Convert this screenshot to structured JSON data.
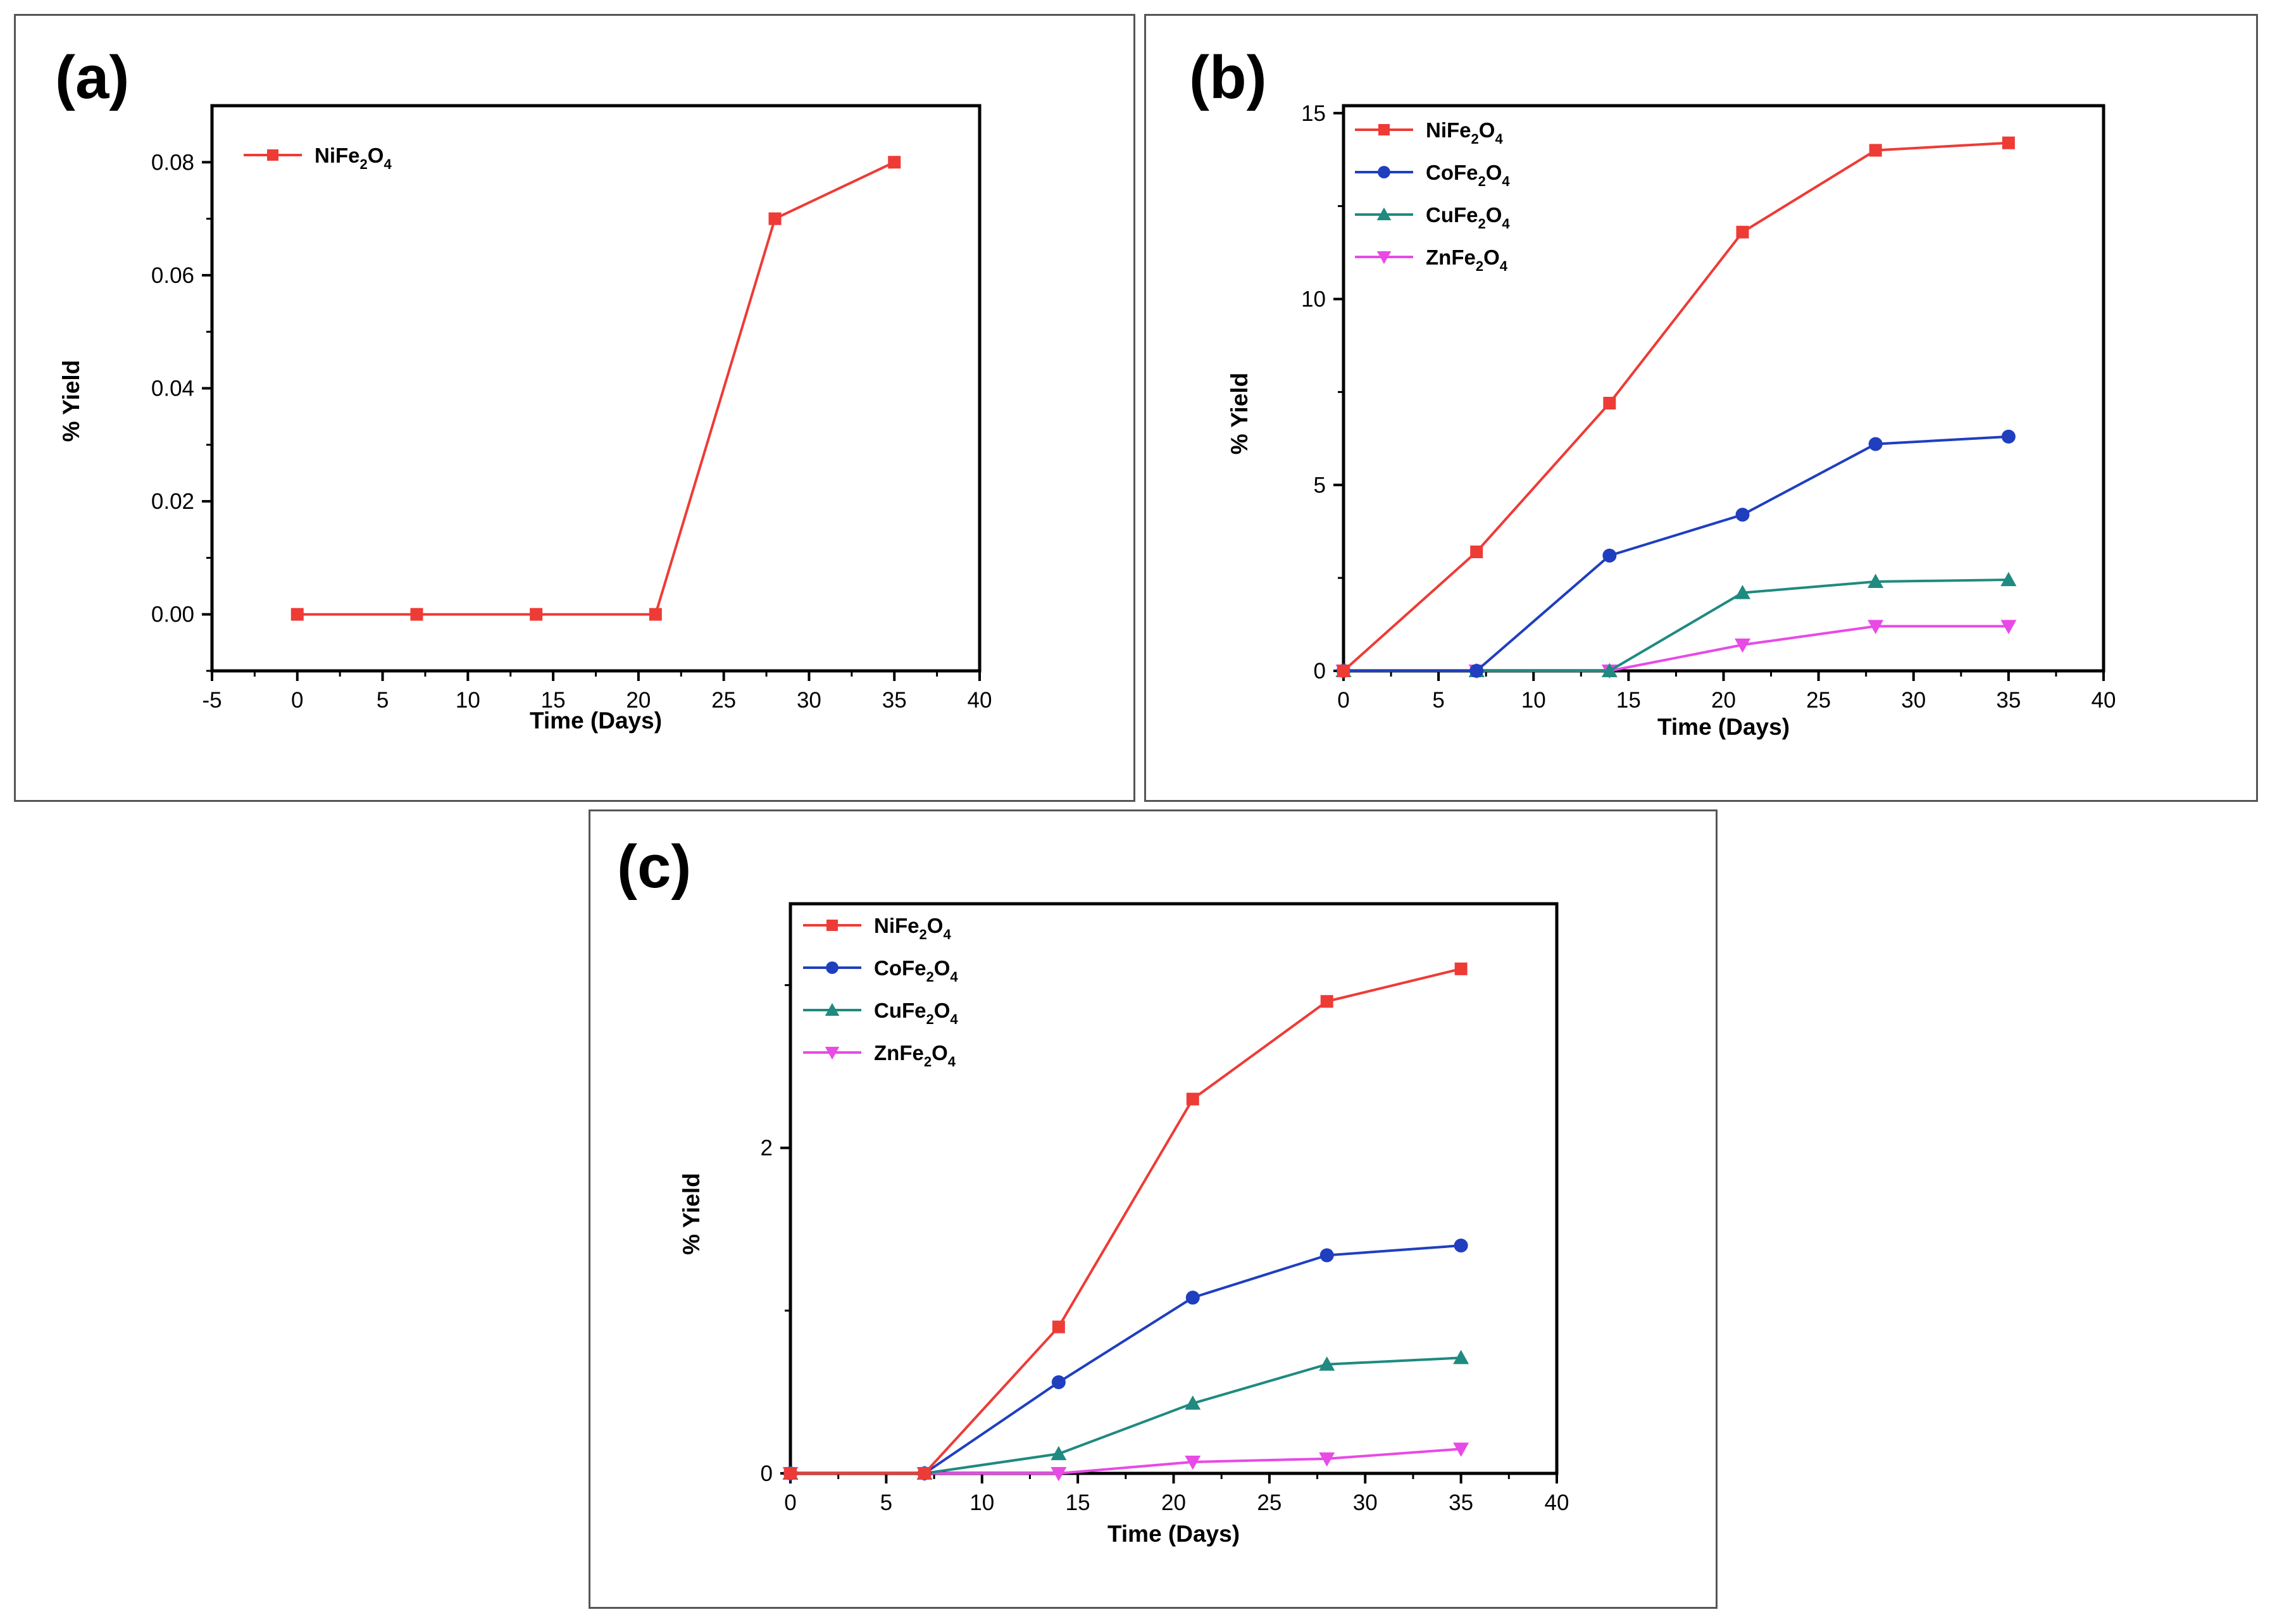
{
  "chart_data": [
    {
      "panel": "(a)",
      "type": "line",
      "xlabel": "Time (Days)",
      "ylabel": "% Yield",
      "xlim": [
        -5,
        40
      ],
      "ylim": [
        -0.01,
        0.09
      ],
      "xticks": [
        -5,
        0,
        5,
        10,
        15,
        20,
        25,
        30,
        35,
        40
      ],
      "yticks": [
        0.0,
        0.02,
        0.04,
        0.06,
        0.08
      ],
      "ydecimals": 2,
      "x": [
        0,
        7,
        14,
        21,
        28,
        35
      ],
      "series": [
        {
          "name": "NiFe",
          "sub1": "2",
          "mid": "O",
          "sub2": "4",
          "color": "#ee3b36",
          "marker": "square",
          "values": [
            0.0,
            0.0,
            0.0,
            0.0,
            0.07,
            0.08
          ]
        }
      ]
    },
    {
      "panel": "(b)",
      "type": "line",
      "xlabel": "Time (Days)",
      "ylabel": "% Yield",
      "xlim": [
        0,
        40
      ],
      "ylim": [
        0,
        15.2
      ],
      "xticks": [
        0,
        5,
        10,
        15,
        20,
        25,
        30,
        35,
        40
      ],
      "yticks": [
        0,
        5,
        10,
        15
      ],
      "ydecimals": 0,
      "x": [
        0,
        7,
        14,
        21,
        28,
        35
      ],
      "series": [
        {
          "name": "NiFe",
          "sub1": "2",
          "mid": "O",
          "sub2": "4",
          "color": "#ee3b36",
          "marker": "square",
          "values": [
            0,
            3.2,
            7.2,
            11.8,
            14.0,
            14.2
          ]
        },
        {
          "name": "CoFe",
          "sub1": "2",
          "mid": "O",
          "sub2": "4",
          "color": "#1f3fbf",
          "marker": "circle",
          "values": [
            0,
            0,
            3.1,
            4.2,
            6.1,
            6.3
          ]
        },
        {
          "name": "CuFe",
          "sub1": "2",
          "mid": "O",
          "sub2": "4",
          "color": "#1f8a80",
          "marker": "triangle-up",
          "values": [
            0,
            0,
            0,
            2.1,
            2.4,
            2.45
          ]
        },
        {
          "name": "ZnFe",
          "sub1": "2",
          "mid": "O",
          "sub2": "4",
          "color": "#e84ae6",
          "marker": "triangle-down",
          "values": [
            0,
            0,
            0,
            0.7,
            1.2,
            1.2
          ]
        }
      ]
    },
    {
      "panel": "(c)",
      "type": "line",
      "xlabel": "Time (Days)",
      "ylabel": "% Yield",
      "xlim": [
        0,
        40
      ],
      "ylim": [
        0,
        3.5
      ],
      "xticks": [
        0,
        5,
        10,
        15,
        20,
        25,
        30,
        35,
        40
      ],
      "yticks": [
        0,
        2
      ],
      "ydecimals": 0,
      "x": [
        0,
        7,
        14,
        21,
        28,
        35
      ],
      "series": [
        {
          "name": "NiFe",
          "sub1": "2",
          "mid": "O",
          "sub2": "4",
          "color": "#ee3b36",
          "marker": "square",
          "values": [
            0,
            0,
            0.9,
            2.3,
            2.9,
            3.1
          ]
        },
        {
          "name": "CoFe",
          "sub1": "2",
          "mid": "O",
          "sub2": "4",
          "color": "#1f3fbf",
          "marker": "circle",
          "values": [
            0,
            0,
            0.56,
            1.08,
            1.34,
            1.4
          ]
        },
        {
          "name": "CuFe",
          "sub1": "2",
          "mid": "O",
          "sub2": "4",
          "color": "#1f8a80",
          "marker": "triangle-up",
          "values": [
            0,
            0,
            0.12,
            0.43,
            0.67,
            0.71
          ]
        },
        {
          "name": "ZnFe",
          "sub1": "2",
          "mid": "O",
          "sub2": "4",
          "color": "#e84ae6",
          "marker": "triangle-down",
          "values": [
            0,
            0,
            0.0,
            0.07,
            0.09,
            0.15
          ]
        }
      ]
    }
  ]
}
